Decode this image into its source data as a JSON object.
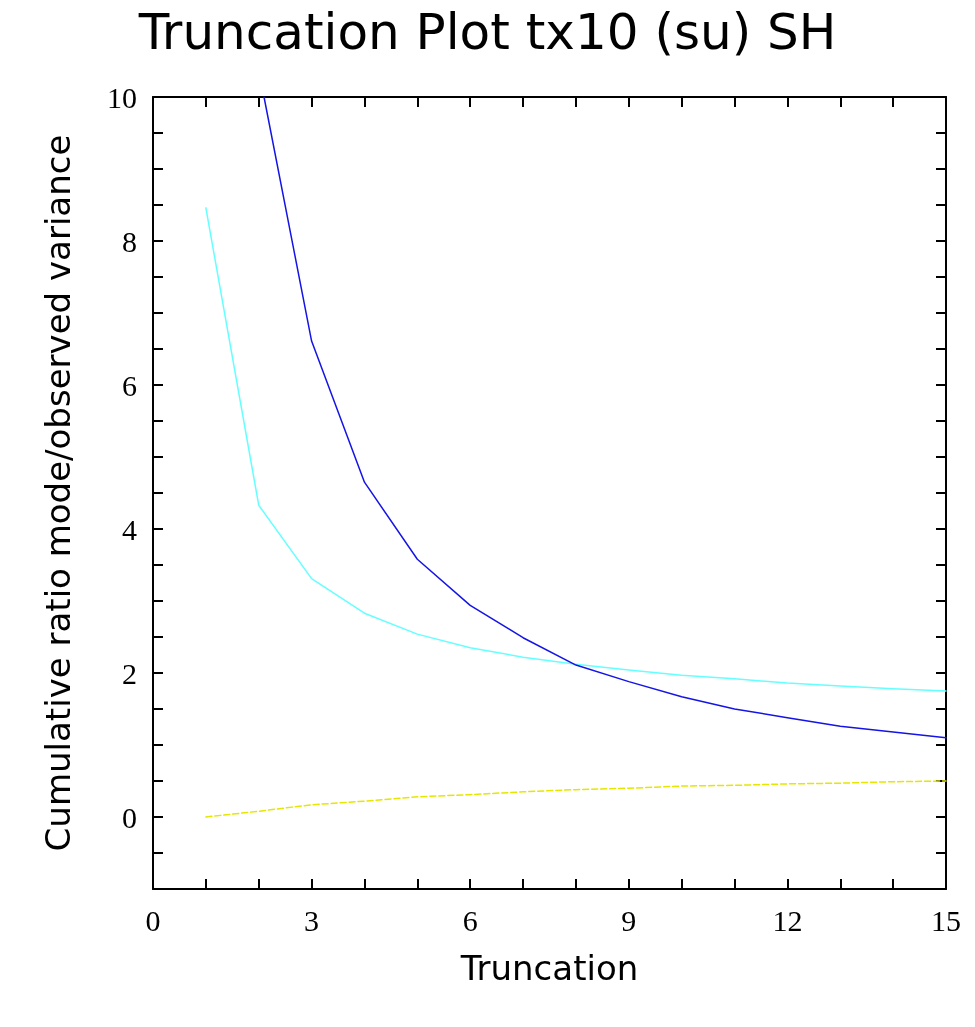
{
  "chart_data": {
    "type": "line",
    "title": "Truncation Plot tx10 (su) SH",
    "xlabel": "Truncation",
    "ylabel": "Cumulative ratio mode/observed variance",
    "xlim": [
      0,
      15
    ],
    "ylim": [
      -1,
      10
    ],
    "xticks": [
      0,
      {
        "value": 1,
        "label": null
      },
      {
        "value": 2,
        "label": null
      },
      3,
      {
        "value": 4,
        "label": null
      },
      {
        "value": 5,
        "label": null
      },
      6,
      {
        "value": 7,
        "label": null
      },
      {
        "value": 8,
        "label": null
      },
      9,
      {
        "value": 10,
        "label": null
      },
      {
        "value": 11,
        "label": null
      },
      12,
      {
        "value": 13,
        "label": null
      },
      {
        "value": 14,
        "label": null
      },
      15
    ],
    "yticks": [
      {
        "value": -1,
        "label": null
      },
      {
        "value": -0.5,
        "label": null
      },
      0,
      {
        "value": 0.5,
        "label": null
      },
      {
        "value": 1,
        "label": null
      },
      {
        "value": 1.5,
        "label": null
      },
      2,
      {
        "value": 2.5,
        "label": null
      },
      {
        "value": 3,
        "label": null
      },
      {
        "value": 3.5,
        "label": null
      },
      4,
      {
        "value": 4.5,
        "label": null
      },
      {
        "value": 5,
        "label": null
      },
      {
        "value": 5.5,
        "label": null
      },
      6,
      {
        "value": 6.5,
        "label": null
      },
      {
        "value": 7,
        "label": null
      },
      {
        "value": 7.5,
        "label": null
      },
      8,
      {
        "value": 8.5,
        "label": null
      },
      {
        "value": 9,
        "label": null
      },
      {
        "value": 9.5,
        "label": null
      },
      10
    ],
    "grid": false,
    "marker": "none",
    "series": [
      {
        "color": "#66ffff",
        "line_style": "solid",
        "x": [
          1,
          2,
          3,
          4,
          5,
          6,
          7,
          8,
          9,
          10,
          11,
          12,
          13,
          14,
          15
        ],
        "values": [
          8.46,
          4.33,
          3.31,
          2.83,
          2.54,
          2.35,
          2.22,
          2.12,
          2.04,
          1.97,
          1.92,
          1.86,
          1.82,
          1.78,
          1.75
        ]
      },
      {
        "color": "#1414e6",
        "line_style": "solid",
        "x": [
          2.1,
          3,
          4,
          5,
          6,
          7,
          8,
          9,
          10,
          11,
          12,
          13,
          14,
          15
        ],
        "values": [
          10,
          6.61,
          4.65,
          3.58,
          2.94,
          2.49,
          2.11,
          1.88,
          1.67,
          1.5,
          1.38,
          1.26,
          1.18,
          1.1
        ]
      },
      {
        "color": "#e6e600",
        "line_style": "dashed",
        "x": [
          1,
          2,
          3,
          4,
          5,
          6,
          7,
          8,
          9,
          10,
          11,
          12,
          13,
          14,
          15
        ],
        "values": [
          0,
          0.08,
          0.17,
          0.22,
          0.28,
          0.31,
          0.35,
          0.38,
          0.4,
          0.43,
          0.44,
          0.46,
          0.47,
          0.49,
          0.5
        ]
      }
    ]
  }
}
